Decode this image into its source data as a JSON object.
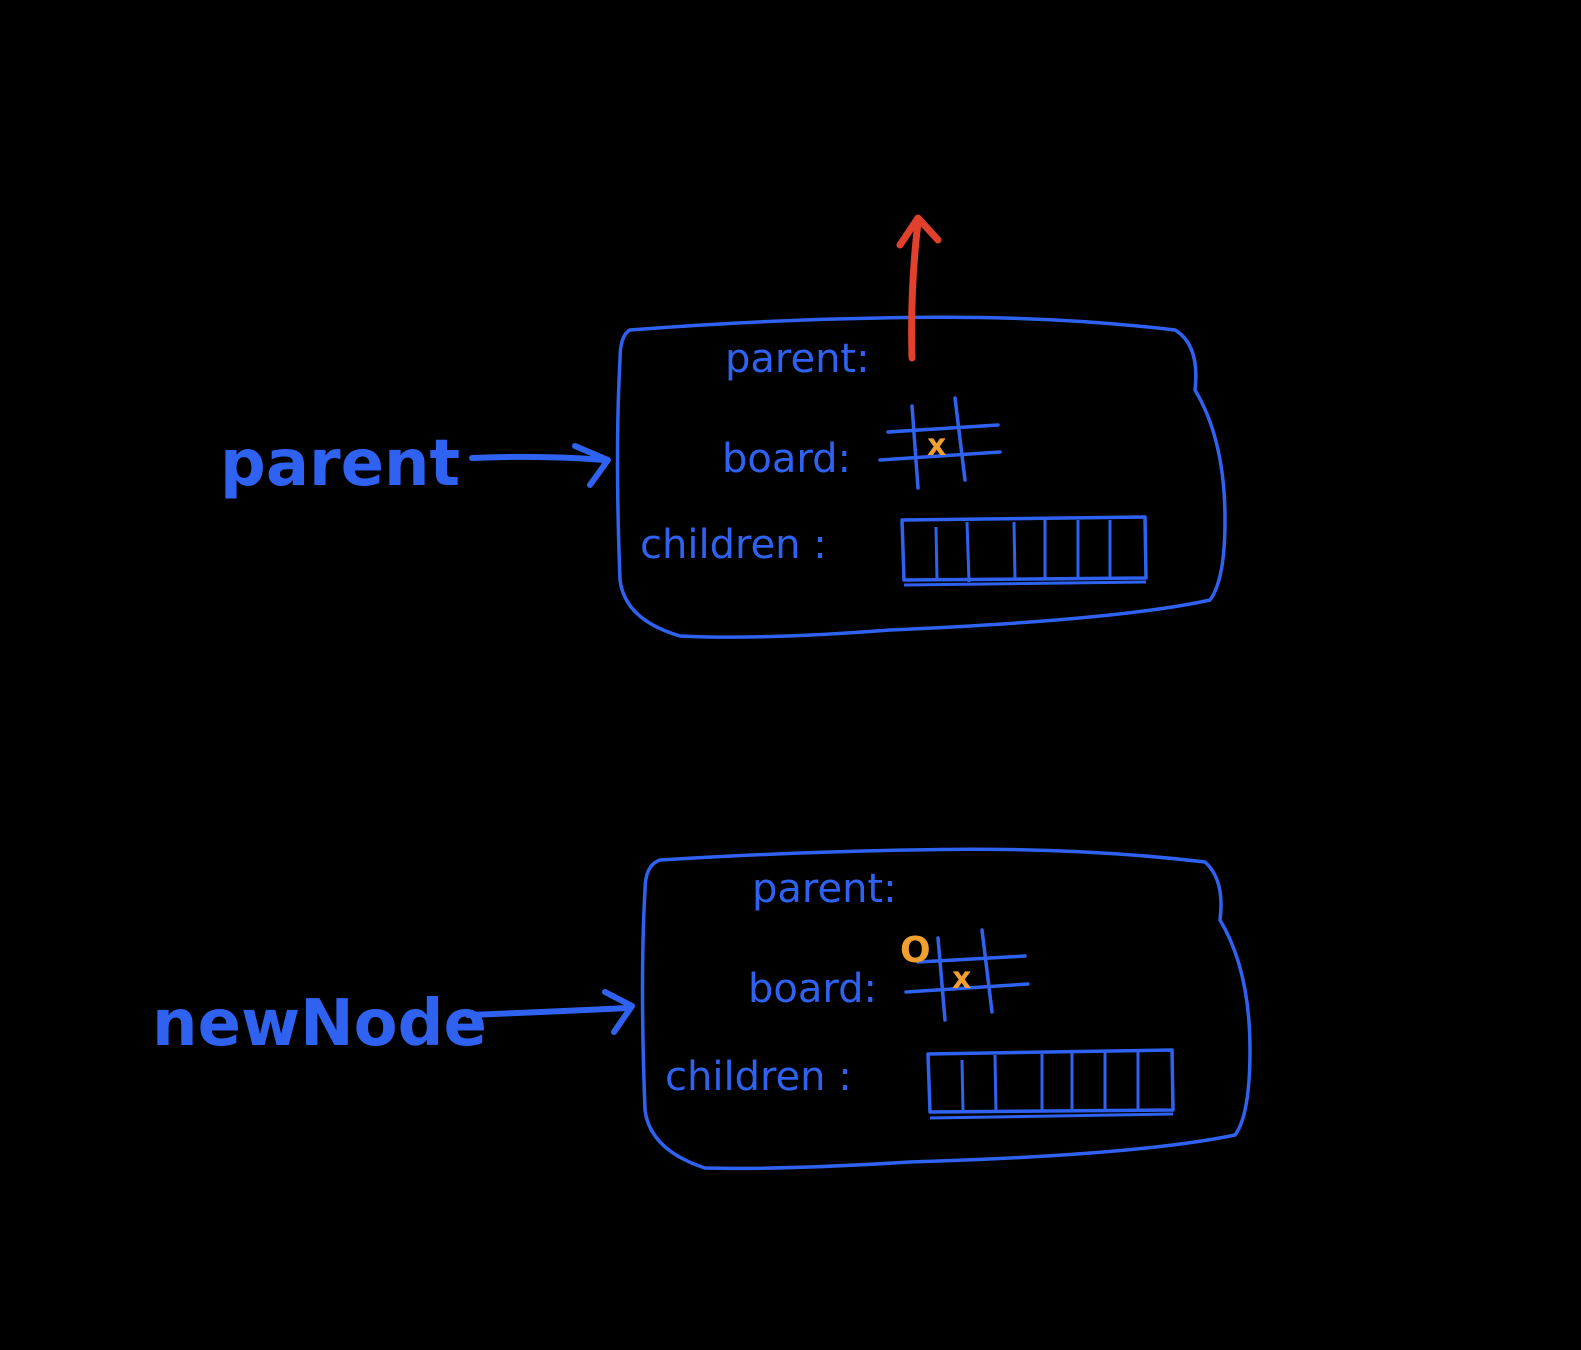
{
  "colors": {
    "background": "#000000",
    "ink": "#2f62f0",
    "mark": "#f0a030",
    "highlight": "#e0402c"
  },
  "pointers": {
    "parent": {
      "label": "parent"
    },
    "newNode": {
      "label": "newNode"
    }
  },
  "nodes": {
    "parent_node": {
      "parent_field": "parent:",
      "board_field": "board:",
      "children_field": "children :",
      "board_marks": {
        "x": "x"
      },
      "children_slots": 7
    },
    "new_node": {
      "parent_field": "parent:",
      "board_field": "board:",
      "children_field": "children :",
      "board_marks": {
        "x": "x",
        "o": "O"
      },
      "children_slots": 7
    }
  }
}
